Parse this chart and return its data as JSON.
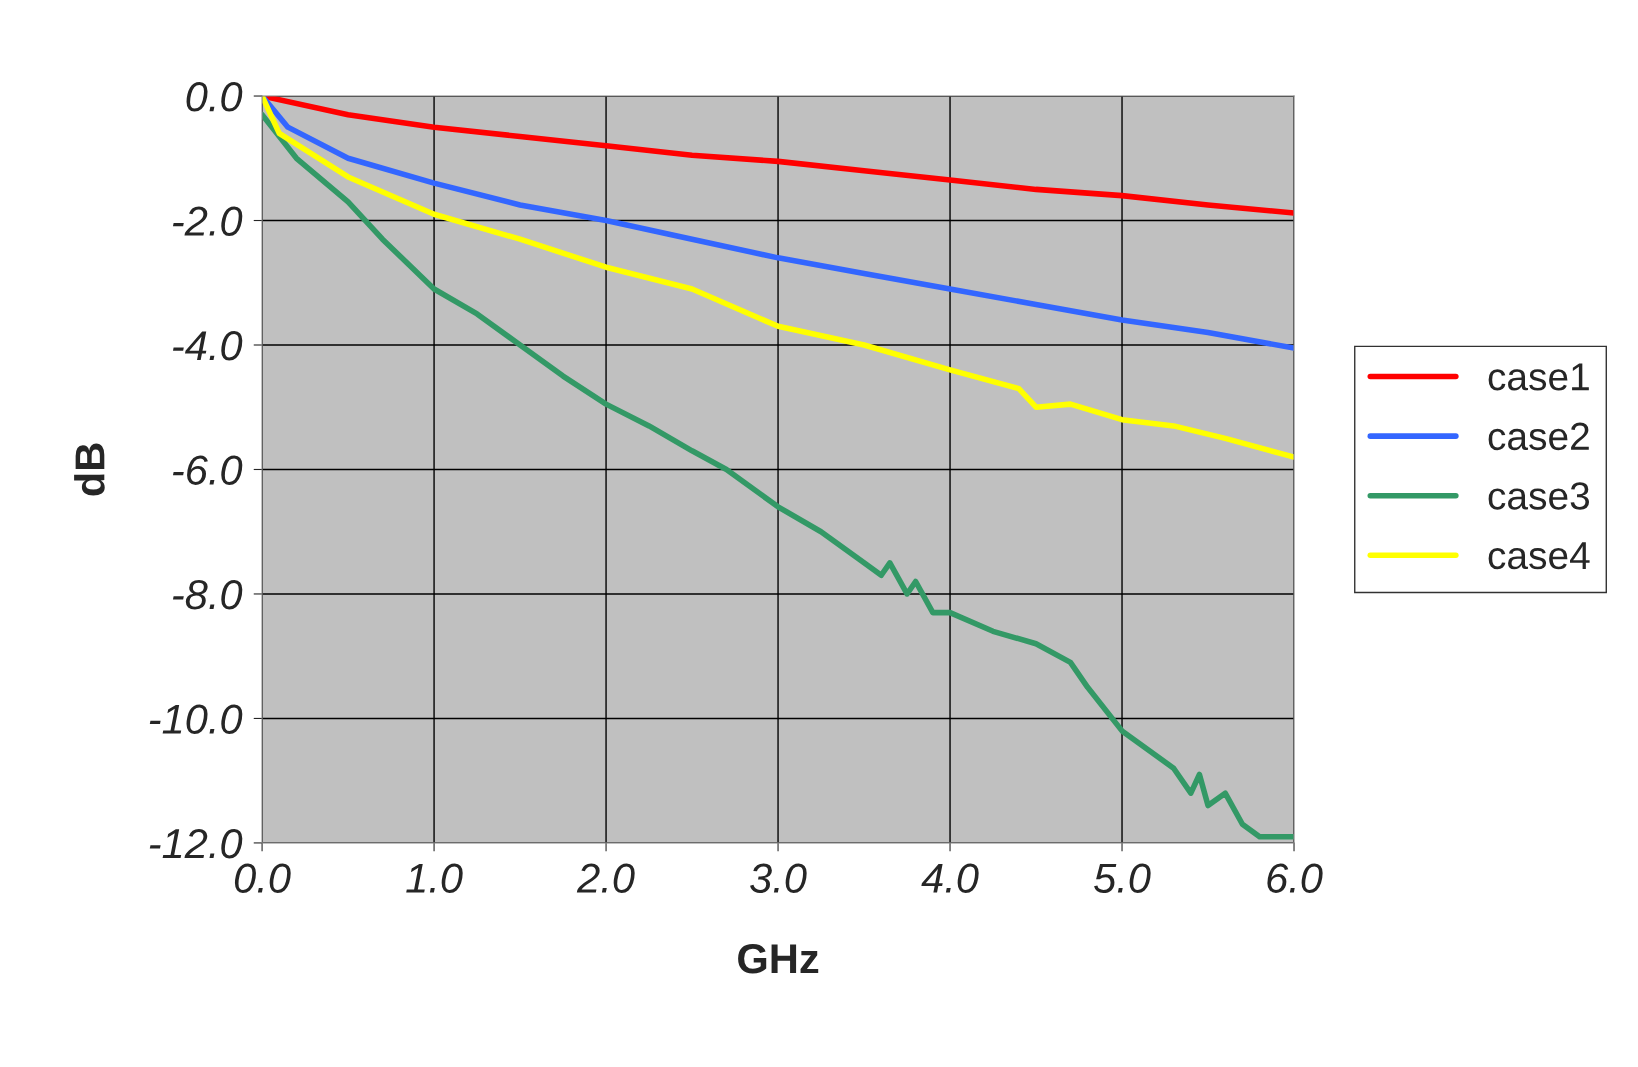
{
  "chart_data": {
    "type": "line",
    "xlabel": "GHz",
    "ylabel": "dB",
    "xlim": [
      0,
      6
    ],
    "ylim": [
      -12,
      0
    ],
    "xticks": [
      {
        "value": 0,
        "label": "0.0"
      },
      {
        "value": 1,
        "label": "1.0"
      },
      {
        "value": 2,
        "label": "2.0"
      },
      {
        "value": 3,
        "label": "3.0"
      },
      {
        "value": 4,
        "label": "4.0"
      },
      {
        "value": 5,
        "label": "5.0"
      },
      {
        "value": 6,
        "label": "6.0"
      }
    ],
    "yticks": [
      {
        "value": 0,
        "label": "0.0"
      },
      {
        "value": -2,
        "label": "-2.0"
      },
      {
        "value": -4,
        "label": "-4.0"
      },
      {
        "value": -6,
        "label": "-6.0"
      },
      {
        "value": -8,
        "label": "-8.0"
      },
      {
        "value": -10,
        "label": "-10.0"
      },
      {
        "value": -12,
        "label": "-12.0"
      }
    ],
    "grid": true,
    "legend": "right",
    "marker": "none",
    "line_style": "solid",
    "series": [
      {
        "name": "case1",
        "color": "#ff0000",
        "x": [
          0,
          0.5,
          1,
          1.5,
          2,
          2.5,
          3,
          3.5,
          4,
          4.5,
          5,
          5.5,
          6
        ],
        "values": [
          0,
          -0.3,
          -0.5,
          -0.65,
          -0.8,
          -0.95,
          -1.05,
          -1.2,
          -1.35,
          -1.5,
          -1.6,
          -1.75,
          -1.88
        ]
      },
      {
        "name": "case2",
        "color": "#3366ff",
        "x": [
          0,
          0.15,
          0.5,
          1,
          1.5,
          2,
          2.5,
          3,
          3.5,
          4,
          4.5,
          5,
          5.5,
          6
        ],
        "values": [
          0,
          -0.5,
          -1.0,
          -1.4,
          -1.75,
          -2.0,
          -2.3,
          -2.6,
          -2.85,
          -3.1,
          -3.35,
          -3.6,
          -3.8,
          -4.05
        ]
      },
      {
        "name": "case3",
        "color": "#339966",
        "x": [
          0,
          0.2,
          0.5,
          0.7,
          1.0,
          1.25,
          1.5,
          1.75,
          2,
          2.25,
          2.5,
          2.7,
          3,
          3.25,
          3.5,
          3.6,
          3.65,
          3.75,
          3.8,
          3.9,
          4,
          4.25,
          4.5,
          4.7,
          4.8,
          5,
          5.3,
          5.4,
          5.45,
          5.5,
          5.6,
          5.7,
          5.8,
          6
        ],
        "values": [
          -0.3,
          -1.0,
          -1.7,
          -2.3,
          -3.1,
          -3.5,
          -4.0,
          -4.5,
          -4.95,
          -5.3,
          -5.7,
          -6.0,
          -6.6,
          -7.0,
          -7.5,
          -7.7,
          -7.5,
          -8.0,
          -7.8,
          -8.3,
          -8.3,
          -8.6,
          -8.8,
          -9.1,
          -9.5,
          -10.2,
          -10.8,
          -11.2,
          -10.9,
          -11.4,
          -11.2,
          -11.7,
          -11.9,
          -11.9
        ]
      },
      {
        "name": "case4",
        "color": "#ffff00",
        "x": [
          0,
          0.1,
          0.5,
          1,
          1.5,
          2,
          2.5,
          3,
          3.5,
          4,
          4.4,
          4.5,
          4.7,
          5,
          5.3,
          5.6,
          6
        ],
        "values": [
          0,
          -0.6,
          -1.3,
          -1.9,
          -2.3,
          -2.75,
          -3.1,
          -3.7,
          -4.0,
          -4.4,
          -4.7,
          -5.0,
          -4.95,
          -5.2,
          -5.3,
          -5.5,
          -5.8
        ]
      }
    ]
  }
}
